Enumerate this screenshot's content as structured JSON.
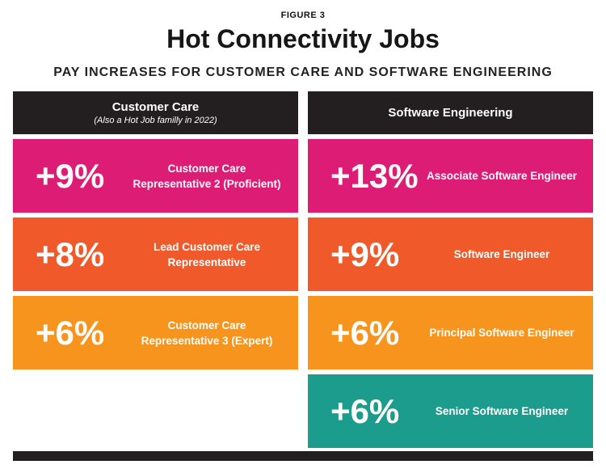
{
  "figure_label": "FIGURE 3",
  "title": "Hot Connectivity Jobs",
  "subtitle": "PAY INCREASES FOR CUSTOMER CARE AND SOFTWARE ENGINEERING",
  "columns": [
    {
      "header": "Customer Care",
      "note": "(Also a Hot Job familly in 2022)",
      "jobs": [
        {
          "pct": "+9%",
          "title": "Customer Care Representative 2 (Proficient)",
          "color": "#dd1c76"
        },
        {
          "pct": "+8%",
          "title": "Lead Customer Care Representative",
          "color": "#f05a2b"
        },
        {
          "pct": "+6%",
          "title": "Customer Care Representative 3 (Expert)",
          "color": "#f7941d"
        }
      ]
    },
    {
      "header": "Software Engineering",
      "jobs": [
        {
          "pct": "+13%",
          "title": "Associate Software Engineer",
          "color": "#dd1c76"
        },
        {
          "pct": "+9%",
          "title": "Software Engineer",
          "color": "#f05a2b"
        },
        {
          "pct": "+6%",
          "title": "Principal Software Engineer",
          "color": "#f7941d"
        },
        {
          "pct": "+6%",
          "title": "Senior Software Engineer",
          "color": "#1b9c8c"
        }
      ]
    }
  ]
}
